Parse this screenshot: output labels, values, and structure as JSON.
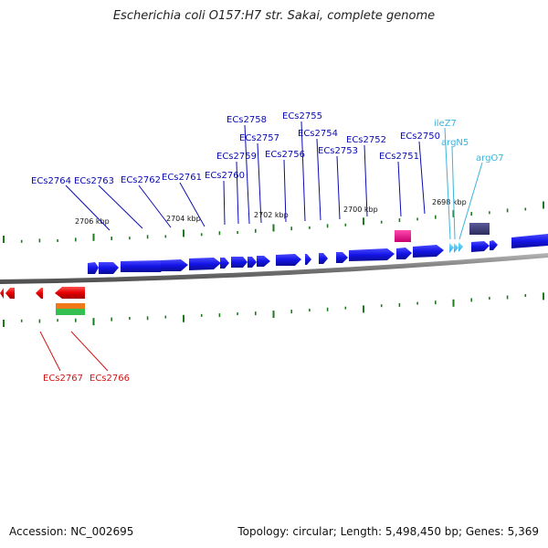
{
  "title": "Escherichia coli O157:H7 str. Sakai, complete genome",
  "footer": {
    "accession": "Accession: NC_002695",
    "topology": "Topology: circular; Length: 5,498,450 bp; Genes: 5,369"
  },
  "colors": {
    "gene_blue": "#1414e6",
    "label_blue": "#0a0ab4",
    "label_cyan": "#3cb4dc",
    "label_red": "#d21414",
    "tick_green": "#1e7a1e",
    "backbone": "#8c8c8c"
  },
  "scale_labels": [
    "2706 kbp",
    "2704 kbp",
    "2702 kbp",
    "2700 kbp",
    "2698 kbp"
  ],
  "gene_labels_top": [
    "ECs2764",
    "ECs2763",
    "ECs2762",
    "ECs2761",
    "ECs2760",
    "ECs2759",
    "ECs2758",
    "ECs2757",
    "ECs2756",
    "ECs2755",
    "ECs2754",
    "ECs2753",
    "ECs2752",
    "ECs2751",
    "ECs2750"
  ],
  "trna_labels_top": [
    "ileZ7",
    "argN5",
    "argO7"
  ],
  "gene_labels_bottom": [
    "ECs2767",
    "ECs2766"
  ]
}
